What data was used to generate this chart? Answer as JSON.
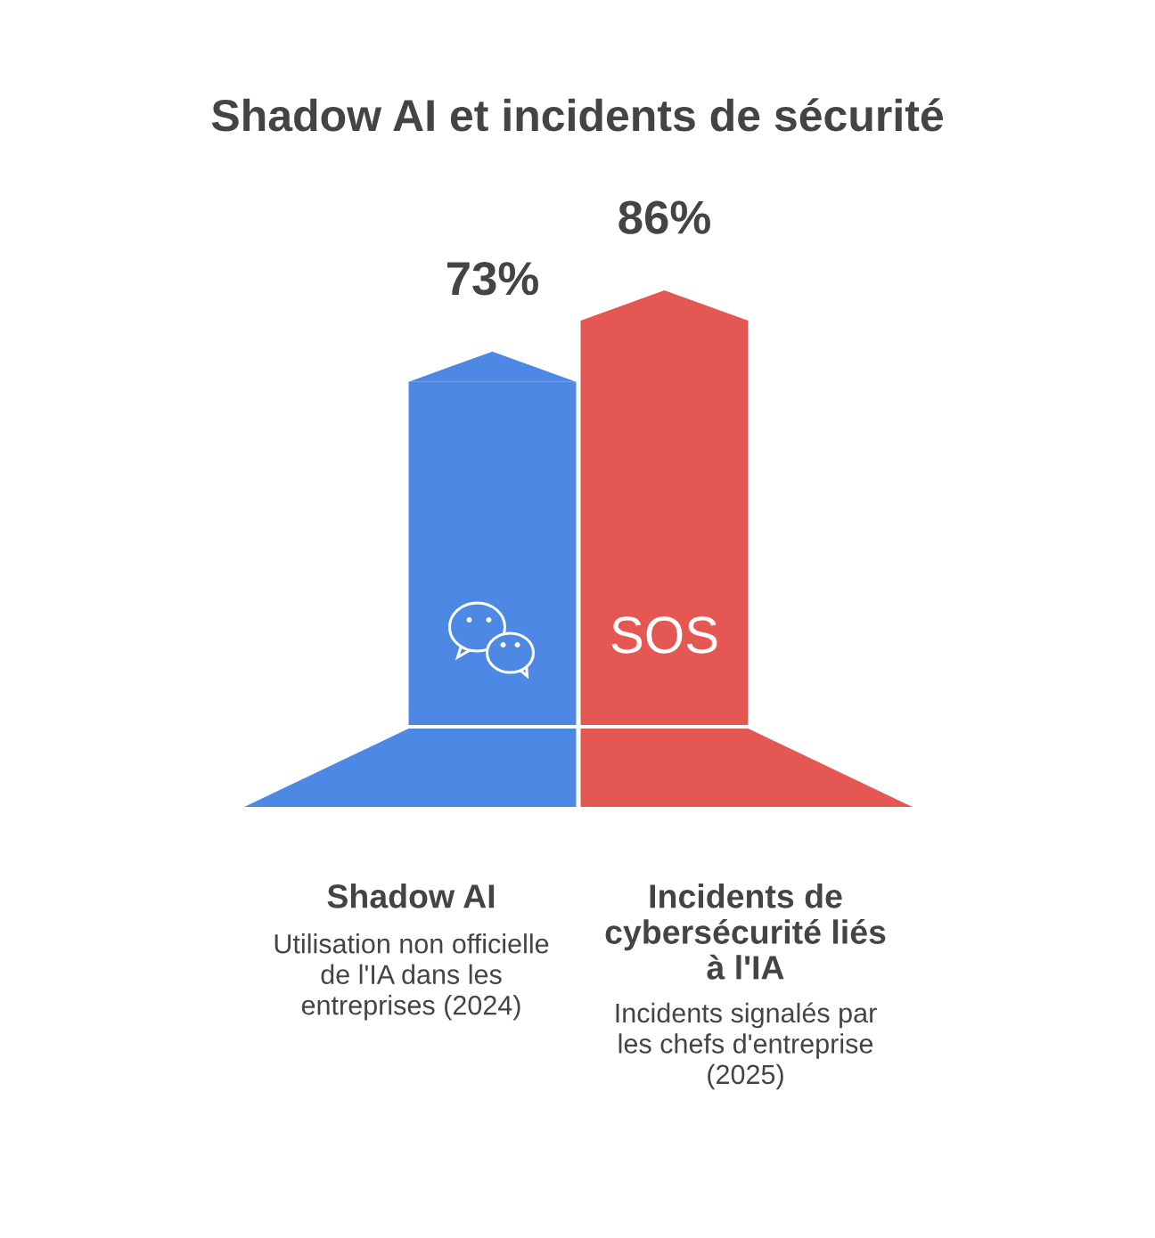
{
  "chart_data": {
    "type": "bar",
    "title": "Shadow AI et incidents de sécurité",
    "categories": [
      "Shadow AI",
      "Incidents de cybersécurité liés à l'IA"
    ],
    "values": [
      73,
      86
    ],
    "colors": [
      "#4e88e5",
      "#e55753"
    ],
    "value_labels": [
      "73%",
      "86%"
    ],
    "tick_labels": "x",
    "annotations": [
      "Utilisation non officielle de l'IA dans les entreprises (2024)",
      "Incidents signalés par les chefs d'entreprise (2025)",
      {
        "text": "SOS",
        "x": "Incidents de cybersécurité liés à l'IA"
      }
    ]
  }
}
